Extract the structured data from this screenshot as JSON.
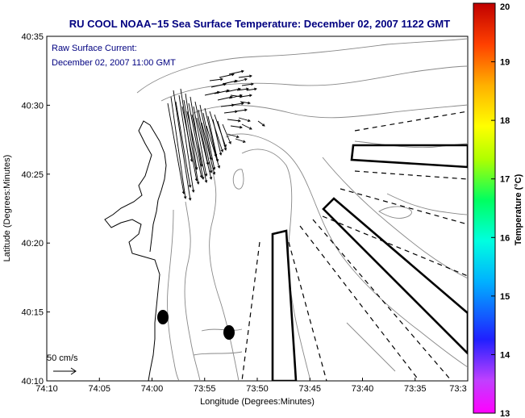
{
  "chart_data": {
    "type": "map",
    "title": "RU COOL  NOAA−15  Sea Surface Temperature:  December 02, 2007 1122 GMT",
    "overlay_label_line1": "Raw Surface Current:",
    "overlay_label_line2": "December 02, 2007 11:00 GMT",
    "scale_label": "50 cm/s",
    "xlabel": "Longitude (Degrees:Minutes)",
    "ylabel": "Latitude (Degrees:Minutes)",
    "x_ticks": [
      "74:10",
      "74:05",
      "74:00",
      "73:55",
      "73:50",
      "73:45",
      "73:40",
      "73:35",
      "73:3"
    ],
    "y_ticks": [
      "40:35",
      "40:30",
      "40:25",
      "40:20",
      "40:15",
      "40:10"
    ],
    "xlim": [
      "74:10",
      "73:30"
    ],
    "ylim": [
      "40:10",
      "40:35"
    ],
    "colorbar": {
      "label": "Temperature (°C)",
      "ticks": [
        "20",
        "19",
        "18",
        "17",
        "16",
        "15",
        "14",
        "13"
      ],
      "range": [
        13,
        20
      ],
      "colors": [
        "#ff00ff",
        "#2020ff",
        "#00b0ff",
        "#00ffe0",
        "#00ff60",
        "#b0ff00",
        "#ffff00",
        "#ffb000",
        "#ff5000",
        "#c00000"
      ]
    },
    "grid": false
  }
}
